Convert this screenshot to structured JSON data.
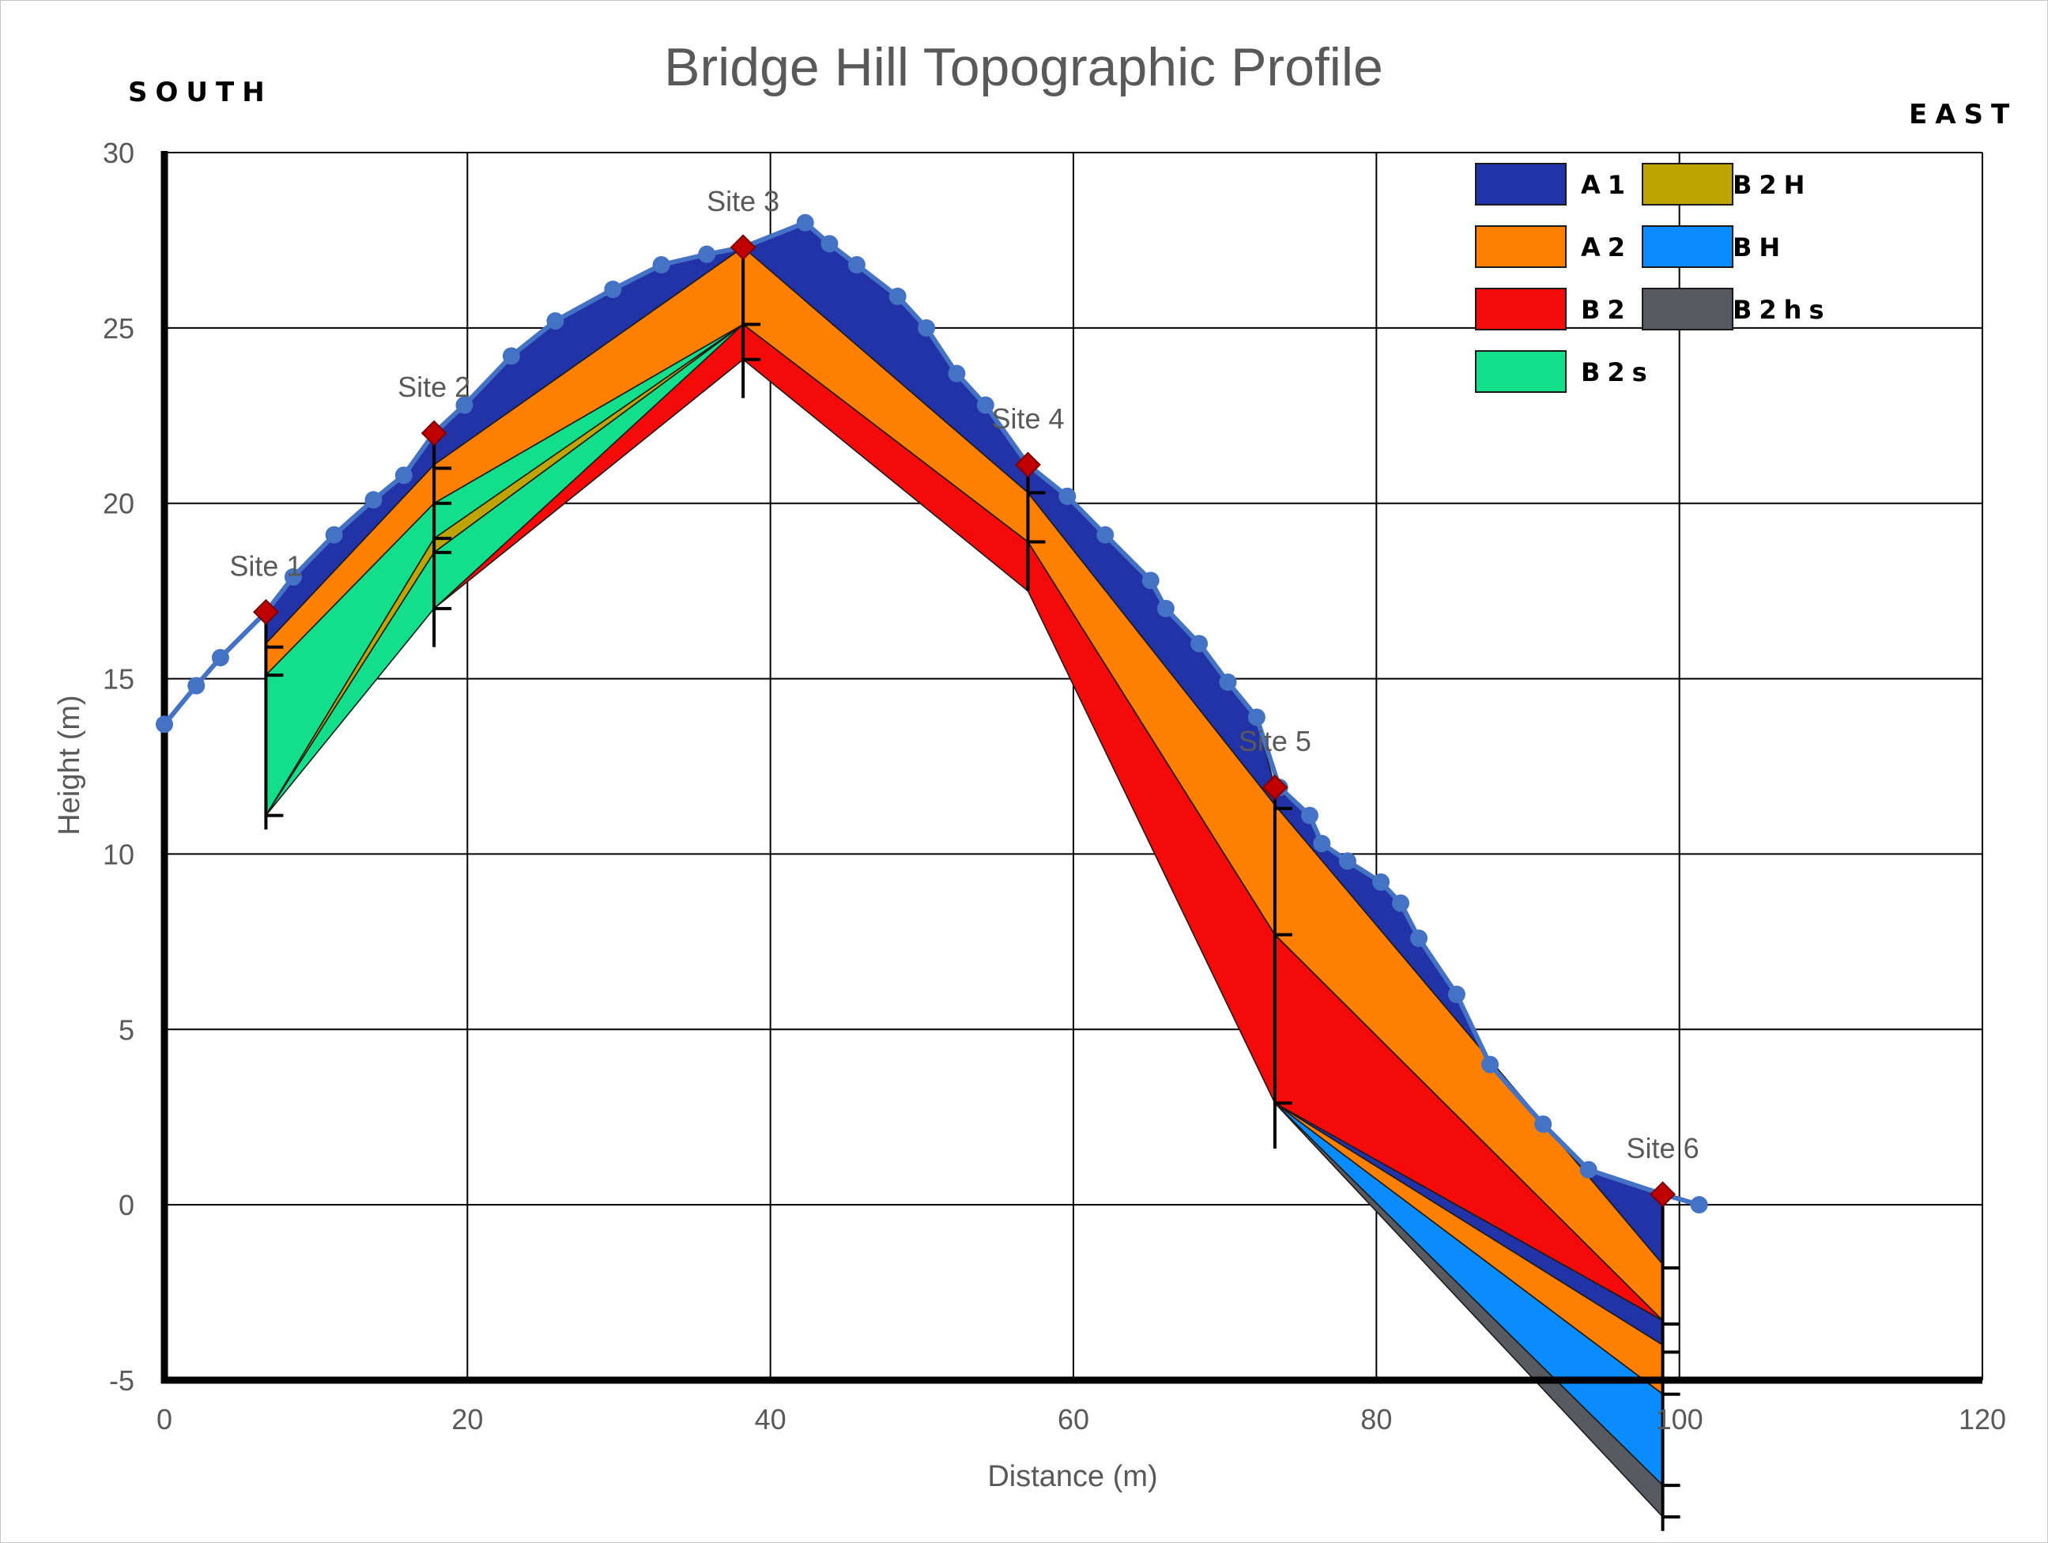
{
  "chart_data": {
    "type": "area",
    "title": "Bridge Hill Topographic Profile",
    "xlabel": "Distance (m)",
    "ylabel": "Height (m)",
    "xlim": [
      0,
      120
    ],
    "ylim": [
      -5,
      30
    ],
    "xticks": [
      0,
      20,
      40,
      60,
      80,
      100,
      120
    ],
    "yticks": [
      -5,
      0,
      5,
      10,
      15,
      20,
      25,
      30
    ],
    "grid": true,
    "legend_position": "top-right",
    "direction_left": "SOUTH",
    "direction_right": "EAST",
    "colors": {
      "A1": "#2233a8",
      "A2": "#ff8000",
      "B2": "#f50a0a",
      "B2s": "#13df8a",
      "B2H": "#bfa300",
      "BH": "#0a8cff",
      "B2hs": "#585a60",
      "profile": "#4472c4",
      "site_marker": "#c00000"
    },
    "legend": [
      {
        "key": "A1",
        "label": "A1"
      },
      {
        "key": "A2",
        "label": "A2"
      },
      {
        "key": "B2",
        "label": "B2"
      },
      {
        "key": "B2s",
        "label": "B2s"
      },
      {
        "key": "B2H",
        "label": "B2H"
      },
      {
        "key": "BH",
        "label": "BH"
      },
      {
        "key": "B2hs",
        "label": "B2hs"
      }
    ],
    "surface_profile": [
      [
        0,
        13.7
      ],
      [
        2.1,
        14.8
      ],
      [
        3.7,
        15.6
      ],
      [
        6.7,
        16.9
      ],
      [
        8.5,
        17.9
      ],
      [
        11.2,
        19.1
      ],
      [
        13.8,
        20.1
      ],
      [
        15.8,
        20.8
      ],
      [
        17.8,
        22.0
      ],
      [
        19.8,
        22.8
      ],
      [
        22.9,
        24.2
      ],
      [
        25.8,
        25.2
      ],
      [
        29.6,
        26.1
      ],
      [
        32.8,
        26.8
      ],
      [
        35.8,
        27.1
      ],
      [
        38.2,
        27.3
      ],
      [
        42.3,
        28.0
      ],
      [
        43.9,
        27.4
      ],
      [
        45.7,
        26.8
      ],
      [
        48.4,
        25.9
      ],
      [
        50.3,
        25.0
      ],
      [
        52.3,
        23.7
      ],
      [
        54.2,
        22.8
      ],
      [
        57.0,
        21.1
      ],
      [
        59.6,
        20.2
      ],
      [
        62.1,
        19.1
      ],
      [
        65.1,
        17.8
      ],
      [
        66.1,
        17.0
      ],
      [
        68.3,
        16.0
      ],
      [
        70.2,
        14.9
      ],
      [
        72.1,
        13.9
      ],
      [
        73.6,
        11.9
      ],
      [
        75.6,
        11.1
      ],
      [
        76.4,
        10.3
      ],
      [
        78.1,
        9.8
      ],
      [
        80.3,
        9.2
      ],
      [
        81.6,
        8.6
      ],
      [
        82.8,
        7.6
      ],
      [
        85.3,
        6.0
      ],
      [
        87.5,
        4.0
      ],
      [
        91.0,
        2.3
      ],
      [
        94.0,
        1.0
      ],
      [
        98.9,
        0.3
      ],
      [
        101.3,
        0.0
      ]
    ],
    "sites": [
      {
        "label": "Site 1",
        "x": 6.7,
        "y": 16.9
      },
      {
        "label": "Site 2",
        "x": 17.8,
        "y": 22.0
      },
      {
        "label": "Site 3",
        "x": 38.2,
        "y": 27.3
      },
      {
        "label": "Site 4",
        "x": 57.0,
        "y": 21.1
      },
      {
        "label": "Site 5",
        "x": 73.3,
        "y": 11.9
      },
      {
        "label": "Site 6",
        "x": 98.9,
        "y": 0.3
      }
    ],
    "boreholes": [
      {
        "site": "Site 1",
        "x": 6.7,
        "top": 16.9,
        "bottom": 10.7,
        "ticks": [
          15.9,
          15.1,
          11.1
        ]
      },
      {
        "site": "Site 2",
        "x": 17.8,
        "top": 22.0,
        "bottom": 15.9,
        "ticks": [
          21.0,
          20.0,
          19.0,
          18.6,
          17.0
        ]
      },
      {
        "site": "Site 3",
        "x": 38.2,
        "top": 27.3,
        "bottom": 23.0,
        "ticks": [
          25.1,
          24.1
        ]
      },
      {
        "site": "Site 4",
        "x": 57.0,
        "top": 21.1,
        "bottom": 17.5,
        "ticks": [
          20.3,
          18.9
        ]
      },
      {
        "site": "Site 5",
        "x": 73.3,
        "top": 11.9,
        "bottom": 1.6,
        "ticks": [
          11.3,
          7.7,
          2.9
        ]
      },
      {
        "site": "Site 6",
        "x": 98.9,
        "top": 0.3,
        "bottom": -9.3,
        "ticks": [
          -1.8,
          -3.4,
          -4.2,
          -5.4,
          -8.0,
          -8.9
        ]
      }
    ],
    "layers": [
      {
        "key": "A1",
        "polygon": [
          [
            6.7,
            16.9
          ],
          [
            8.5,
            17.9
          ],
          [
            11.2,
            19.1
          ],
          [
            13.8,
            20.1
          ],
          [
            15.8,
            20.8
          ],
          [
            17.8,
            22.0
          ],
          [
            19.8,
            22.8
          ],
          [
            22.9,
            24.2
          ],
          [
            25.8,
            25.2
          ],
          [
            29.6,
            26.1
          ],
          [
            32.8,
            26.8
          ],
          [
            35.8,
            27.1
          ],
          [
            38.2,
            27.3
          ],
          [
            42.3,
            28.0
          ],
          [
            43.9,
            27.4
          ],
          [
            45.7,
            26.8
          ],
          [
            48.4,
            25.9
          ],
          [
            50.3,
            25.0
          ],
          [
            52.3,
            23.7
          ],
          [
            54.2,
            22.8
          ],
          [
            57.0,
            21.1
          ],
          [
            59.6,
            20.2
          ],
          [
            62.1,
            19.1
          ],
          [
            65.1,
            17.8
          ],
          [
            66.1,
            17.0
          ],
          [
            68.3,
            16.0
          ],
          [
            70.2,
            14.9
          ],
          [
            72.1,
            13.9
          ],
          [
            73.3,
            11.9
          ],
          [
            75.6,
            11.1
          ],
          [
            76.4,
            10.3
          ],
          [
            78.1,
            9.8
          ],
          [
            80.3,
            9.2
          ],
          [
            81.6,
            8.6
          ],
          [
            82.8,
            7.6
          ],
          [
            85.3,
            6.0
          ],
          [
            87.5,
            4.0
          ],
          [
            91.0,
            2.3
          ],
          [
            94.0,
            1.0
          ],
          [
            98.9,
            0.3
          ],
          [
            98.9,
            -1.7
          ],
          [
            73.3,
            11.4
          ],
          [
            57.0,
            20.3
          ],
          [
            38.2,
            27.3
          ],
          [
            17.8,
            21.1
          ],
          [
            6.7,
            16.0
          ]
        ]
      },
      {
        "key": "A2",
        "polygon": [
          [
            6.7,
            16.0
          ],
          [
            17.8,
            21.1
          ],
          [
            38.2,
            27.3
          ],
          [
            57.0,
            20.3
          ],
          [
            73.3,
            11.4
          ],
          [
            98.9,
            -1.7
          ],
          [
            98.9,
            -3.3
          ],
          [
            73.3,
            7.7
          ],
          [
            57.0,
            18.9
          ],
          [
            38.2,
            25.1
          ],
          [
            17.8,
            20.0
          ],
          [
            6.7,
            15.1
          ]
        ]
      },
      {
        "key": "B2",
        "polygon": [
          [
            38.2,
            25.1
          ],
          [
            57.0,
            18.9
          ],
          [
            73.3,
            7.7
          ],
          [
            98.9,
            -3.3
          ],
          [
            73.3,
            2.9
          ],
          [
            57.0,
            17.5
          ],
          [
            38.2,
            24.1
          ],
          [
            17.8,
            17.0
          ]
        ]
      },
      {
        "key": "B2s",
        "polygon": [
          [
            6.7,
            15.1
          ],
          [
            17.8,
            20.0
          ],
          [
            38.2,
            25.1
          ],
          [
            17.8,
            19.0
          ],
          [
            6.7,
            11.1
          ]
        ]
      },
      {
        "key": "B2H",
        "polygon": [
          [
            6.7,
            11.1
          ],
          [
            17.8,
            19.0
          ],
          [
            38.2,
            25.1
          ],
          [
            17.8,
            18.6
          ]
        ]
      },
      {
        "key": "B2s",
        "polygon": [
          [
            6.7,
            11.1
          ],
          [
            17.8,
            18.6
          ],
          [
            38.2,
            25.1
          ],
          [
            17.8,
            17.0
          ]
        ]
      },
      {
        "key": "A1",
        "polygon": [
          [
            73.3,
            2.9
          ],
          [
            98.9,
            -3.3
          ],
          [
            98.9,
            -4.0
          ]
        ]
      },
      {
        "key": "A2",
        "polygon": [
          [
            73.3,
            2.9
          ],
          [
            98.9,
            -4.0
          ],
          [
            98.9,
            -5.4
          ]
        ]
      },
      {
        "key": "BH",
        "polygon": [
          [
            73.3,
            2.9
          ],
          [
            98.9,
            -5.4
          ],
          [
            98.9,
            -8.0
          ]
        ]
      },
      {
        "key": "B2hs",
        "polygon": [
          [
            73.3,
            2.9
          ],
          [
            98.9,
            -8.0
          ],
          [
            98.9,
            -8.9
          ]
        ]
      }
    ]
  }
}
